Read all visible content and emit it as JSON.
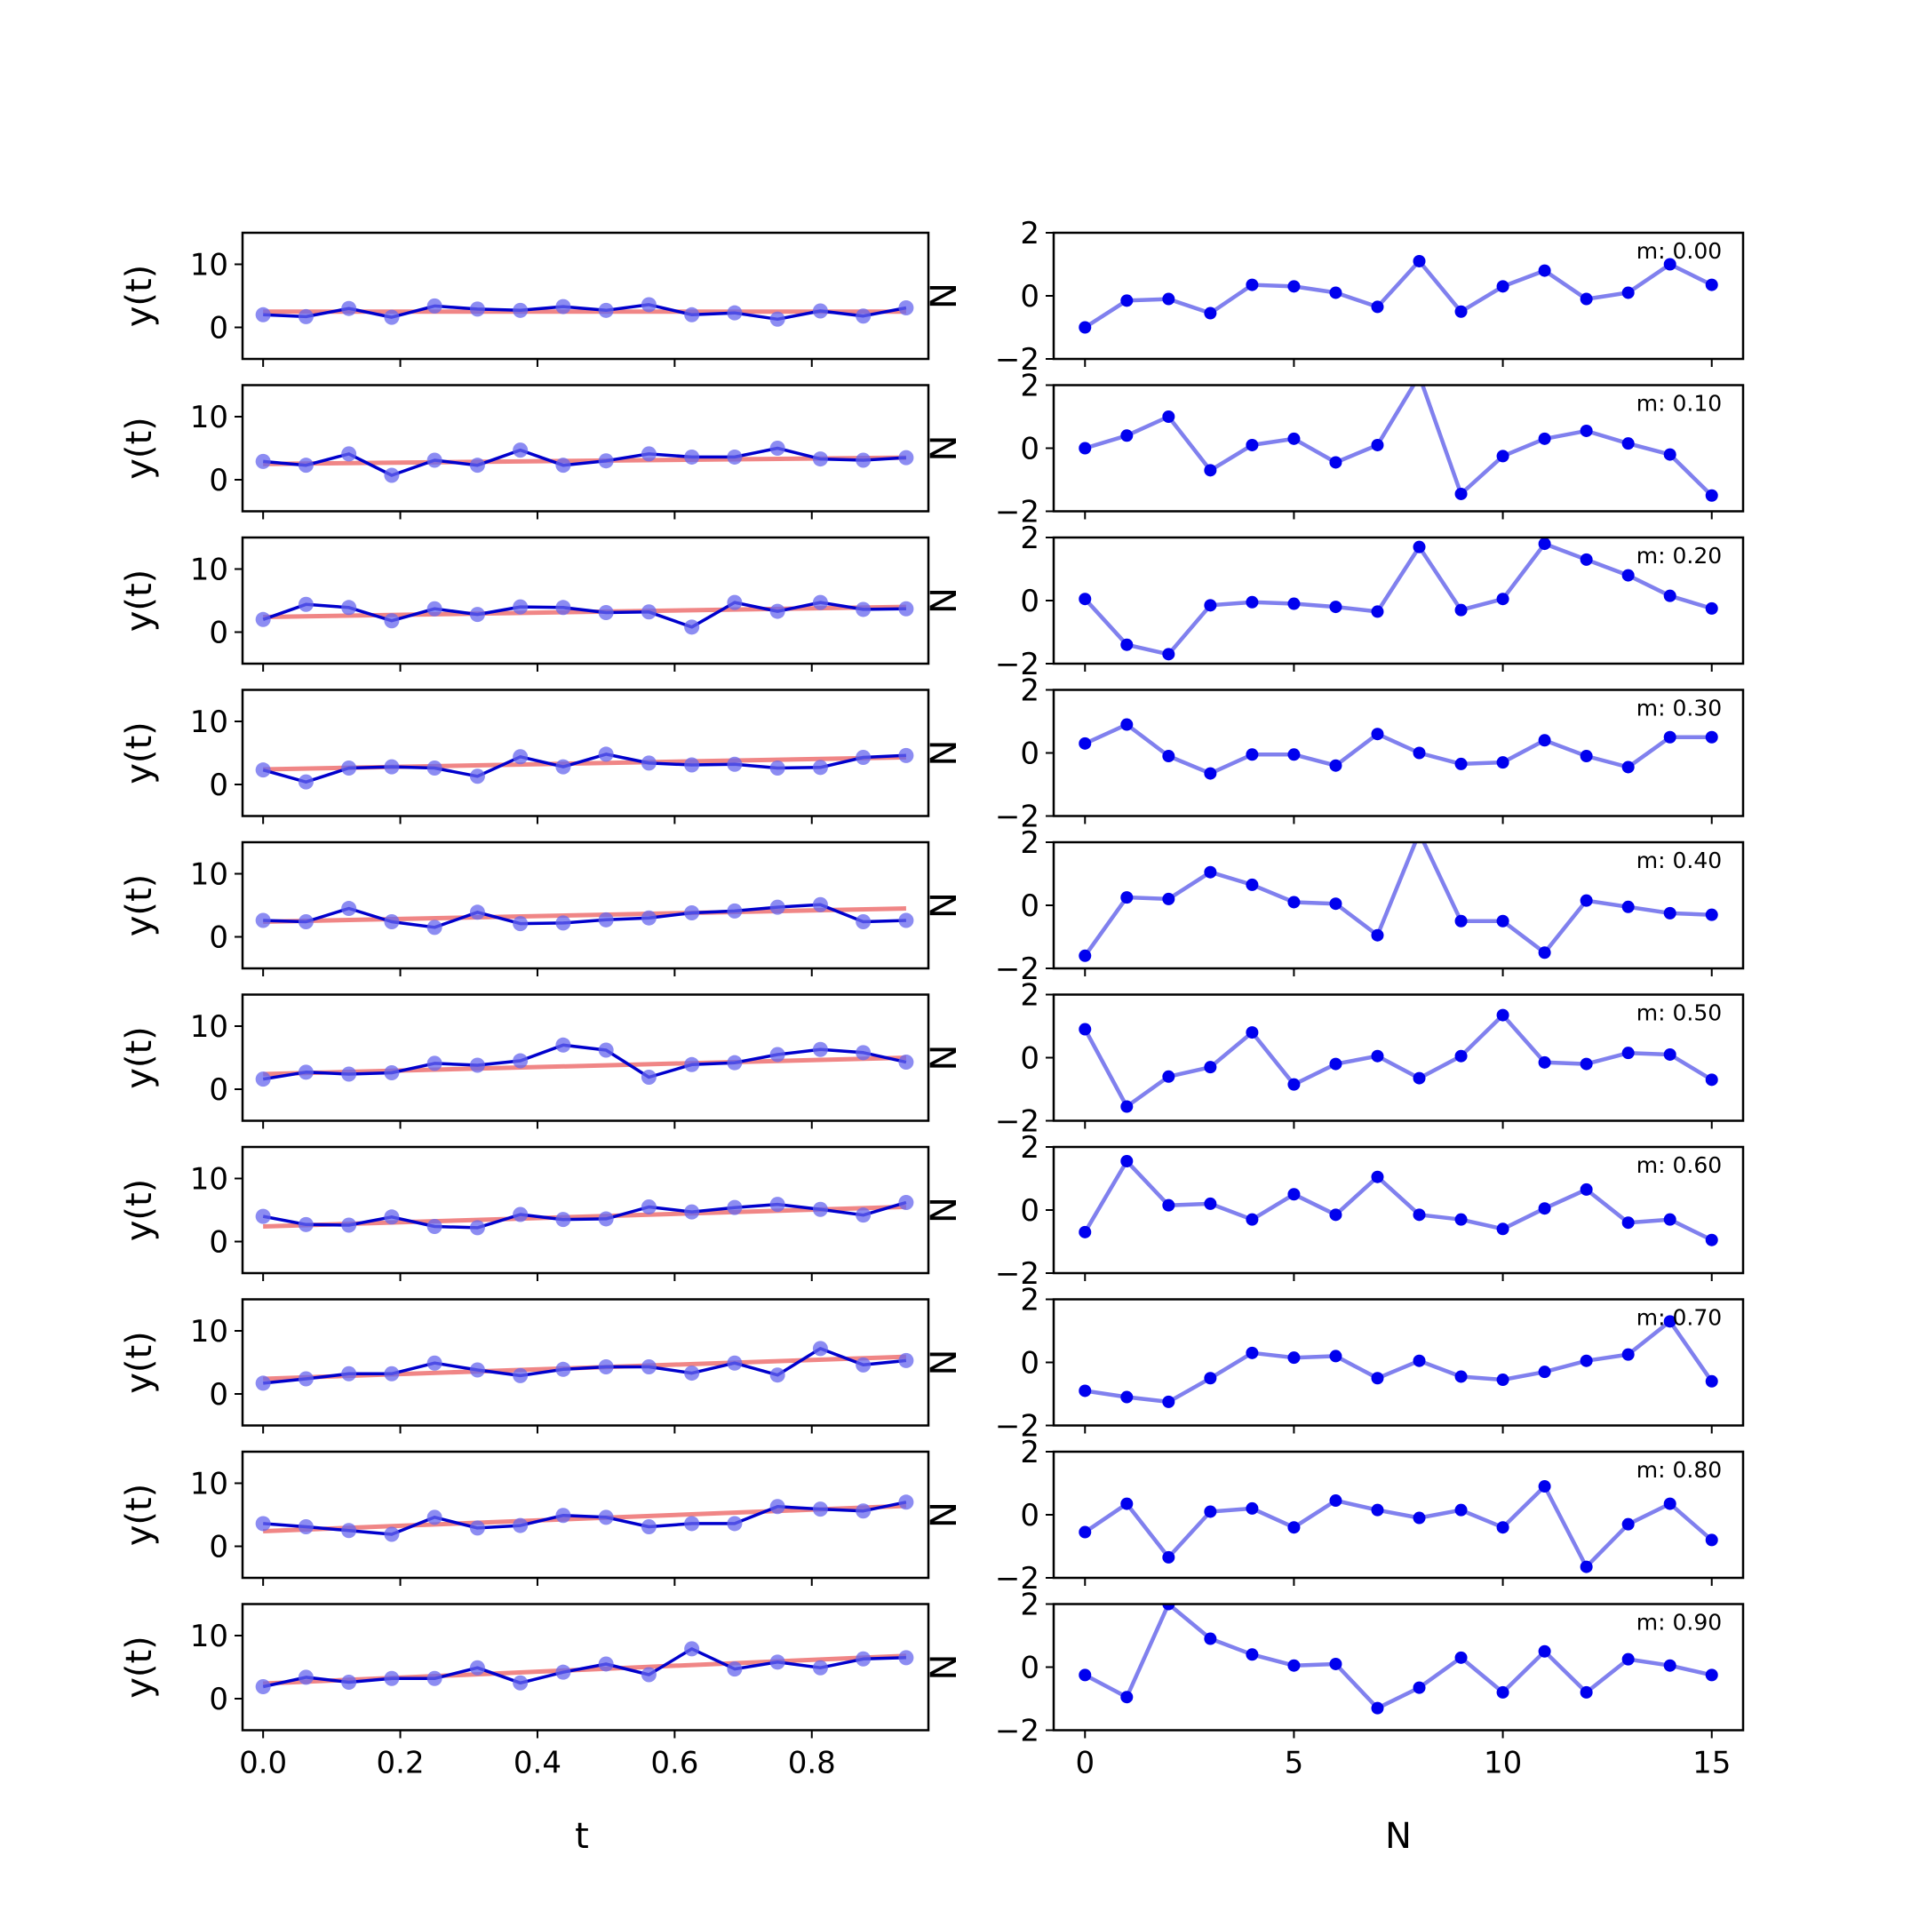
{
  "figure": {
    "left_xlabel": "t",
    "right_xlabel": "N",
    "left_ylabel": "y(t)",
    "right_ylabel": "N"
  },
  "colors": {
    "data_line": "#0000cc",
    "data_points": "#6666ee",
    "fit_line": "#f08080",
    "residual_line": "#8080ee",
    "residual_points": "#0000ee"
  },
  "chart_data": [
    {
      "type": "line",
      "panel": "left",
      "xlabel": "t",
      "ylabel": "y(t)",
      "xlim": [
        -0.03,
        0.97
      ],
      "ylim": [
        -5,
        15
      ],
      "xticks": [
        0.0,
        0.2,
        0.4,
        0.6,
        0.8
      ],
      "xtick_labels": [
        "0.0",
        "0.2",
        "0.4",
        "0.6",
        "0.8"
      ],
      "yticks": [
        0,
        10
      ],
      "yticks_labels": [
        "0",
        "10"
      ],
      "x": [
        0.0,
        0.0625,
        0.125,
        0.1875,
        0.25,
        0.3125,
        0.375,
        0.4375,
        0.5,
        0.5625,
        0.625,
        0.6875,
        0.75,
        0.8125,
        0.875,
        0.9375
      ],
      "series": [
        {
          "name": "m: 0.00",
          "values": [
            2.0,
            1.7,
            3.0,
            1.6,
            3.4,
            2.9,
            2.7,
            3.3,
            2.7,
            3.6,
            2.0,
            2.3,
            1.3,
            2.6,
            1.8,
            3.1
          ],
          "fit": [
            2.5,
            2.5
          ]
        },
        {
          "name": "m: 0.10",
          "values": [
            2.9,
            2.3,
            4.1,
            0.7,
            3.1,
            2.3,
            4.7,
            2.3,
            3.0,
            4.1,
            3.6,
            3.6,
            5.0,
            3.3,
            3.1,
            3.5
          ],
          "fit": [
            2.5,
            3.5
          ]
        },
        {
          "name": "m: 0.20",
          "values": [
            2.0,
            4.4,
            3.9,
            1.8,
            3.7,
            2.8,
            4.0,
            3.9,
            3.1,
            3.2,
            0.8,
            4.7,
            3.3,
            4.7,
            3.6,
            3.7
          ],
          "fit": [
            2.4,
            4.0
          ]
        },
        {
          "name": "m: 0.30",
          "values": [
            2.3,
            0.4,
            2.6,
            2.8,
            2.6,
            1.3,
            4.4,
            2.8,
            4.8,
            3.4,
            3.1,
            3.2,
            2.6,
            2.7,
            4.3,
            4.6
          ],
          "fit": [
            2.4,
            4.3
          ]
        },
        {
          "name": "m: 0.40",
          "values": [
            2.6,
            2.4,
            4.5,
            2.4,
            1.5,
            3.9,
            2.1,
            2.2,
            2.7,
            3.0,
            3.8,
            4.1,
            4.7,
            5.1,
            2.4,
            2.6
          ],
          "fit": [
            2.4,
            4.5
          ]
        },
        {
          "name": "m: 0.50",
          "values": [
            1.6,
            2.7,
            2.4,
            2.6,
            4.1,
            3.8,
            4.5,
            7.0,
            6.2,
            1.9,
            3.9,
            4.2,
            5.5,
            6.3,
            5.8,
            4.3
          ],
          "fit": [
            2.4,
            5.0
          ]
        },
        {
          "name": "m: 0.60",
          "values": [
            4.0,
            2.7,
            2.6,
            3.9,
            2.4,
            2.2,
            4.3,
            3.5,
            3.6,
            5.5,
            4.7,
            5.4,
            5.9,
            5.1,
            4.2,
            6.2
          ],
          "fit": [
            2.4,
            5.5
          ]
        },
        {
          "name": "m: 0.70",
          "values": [
            1.7,
            2.4,
            3.2,
            3.2,
            4.9,
            3.8,
            2.9,
            3.9,
            4.3,
            4.3,
            3.3,
            4.9,
            3.0,
            7.2,
            4.6,
            5.3
          ],
          "fit": [
            2.4,
            5.9
          ]
        },
        {
          "name": "m: 0.80",
          "values": [
            3.6,
            3.1,
            2.5,
            1.9,
            4.6,
            2.9,
            3.3,
            4.9,
            4.6,
            3.1,
            3.6,
            3.6,
            6.3,
            5.9,
            5.6,
            7.0
          ],
          "fit": [
            2.4,
            6.4
          ]
        },
        {
          "name": "m: 0.90",
          "values": [
            1.9,
            3.4,
            2.6,
            3.2,
            3.2,
            4.9,
            2.5,
            4.2,
            5.5,
            3.8,
            7.9,
            4.7,
            5.8,
            4.9,
            6.3,
            6.5
          ],
          "fit": [
            2.4,
            6.8
          ]
        }
      ]
    },
    {
      "type": "line",
      "panel": "right",
      "xlabel": "N",
      "ylabel": "N",
      "xlim": [
        -0.75,
        15.75
      ],
      "ylim": [
        -2,
        2
      ],
      "xticks": [
        0,
        5,
        10,
        15
      ],
      "xtick_labels": [
        "0",
        "5",
        "10",
        "15"
      ],
      "yticks": [
        -2,
        0,
        2
      ],
      "yticks_labels": [
        "−2",
        "0",
        "2"
      ],
      "x": [
        0,
        1,
        2,
        3,
        4,
        5,
        6,
        7,
        8,
        9,
        10,
        11,
        12,
        13,
        14,
        15
      ],
      "series": [
        {
          "name": "m: 0.00",
          "values": [
            -1.0,
            -0.15,
            -0.1,
            -0.55,
            0.35,
            0.3,
            0.1,
            -0.35,
            1.1,
            -0.5,
            0.3,
            0.8,
            -0.1,
            0.1,
            1.0,
            0.35
          ]
        },
        {
          "name": "m: 0.10",
          "values": [
            0.0,
            0.4,
            1.0,
            -0.7,
            0.1,
            0.3,
            -0.45,
            0.1,
            2.3,
            -1.45,
            -0.25,
            0.3,
            0.55,
            0.15,
            -0.2,
            -1.5
          ]
        },
        {
          "name": "m: 0.20",
          "values": [
            0.05,
            -1.4,
            -1.7,
            -0.15,
            -0.05,
            -0.1,
            -0.2,
            -0.35,
            1.7,
            -0.3,
            0.05,
            1.8,
            1.3,
            0.8,
            0.15,
            -0.25
          ]
        },
        {
          "name": "m: 0.30",
          "values": [
            0.3,
            0.9,
            -0.1,
            -0.65,
            -0.05,
            -0.05,
            -0.4,
            0.6,
            0.0,
            -0.35,
            -0.3,
            0.4,
            -0.1,
            -0.45,
            0.5,
            0.5
          ]
        },
        {
          "name": "m: 0.40",
          "values": [
            -1.6,
            0.25,
            0.2,
            1.05,
            0.65,
            0.1,
            0.05,
            -0.95,
            2.3,
            -0.5,
            -0.5,
            -1.5,
            0.15,
            -0.05,
            -0.25,
            -0.3
          ]
        },
        {
          "name": "m: 0.50",
          "values": [
            0.9,
            -1.55,
            -0.6,
            -0.3,
            0.8,
            -0.85,
            -0.2,
            0.05,
            -0.65,
            0.05,
            1.35,
            -0.15,
            -0.2,
            0.15,
            0.1,
            -0.7
          ]
        },
        {
          "name": "m: 0.60",
          "values": [
            -0.7,
            1.55,
            0.15,
            0.2,
            -0.3,
            0.5,
            -0.15,
            1.05,
            -0.15,
            -0.3,
            -0.6,
            0.05,
            0.65,
            -0.4,
            -0.3,
            -0.95
          ]
        },
        {
          "name": "m: 0.70",
          "values": [
            -0.9,
            -1.1,
            -1.25,
            -0.5,
            0.3,
            0.15,
            0.2,
            -0.5,
            0.05,
            -0.45,
            -0.55,
            -0.3,
            0.05,
            0.25,
            1.3,
            -0.6
          ]
        },
        {
          "name": "m: 0.80",
          "values": [
            -0.55,
            0.35,
            -1.35,
            0.1,
            0.2,
            -0.4,
            0.45,
            0.15,
            -0.1,
            0.15,
            -0.4,
            0.9,
            -1.65,
            -0.3,
            0.35,
            -0.8
          ]
        },
        {
          "name": "m: 0.90",
          "values": [
            -0.25,
            -0.95,
            2.0,
            0.9,
            0.4,
            0.05,
            0.1,
            -1.3,
            -0.65,
            0.3,
            -0.8,
            0.5,
            -0.8,
            0.25,
            0.05,
            -0.25
          ]
        }
      ]
    }
  ]
}
